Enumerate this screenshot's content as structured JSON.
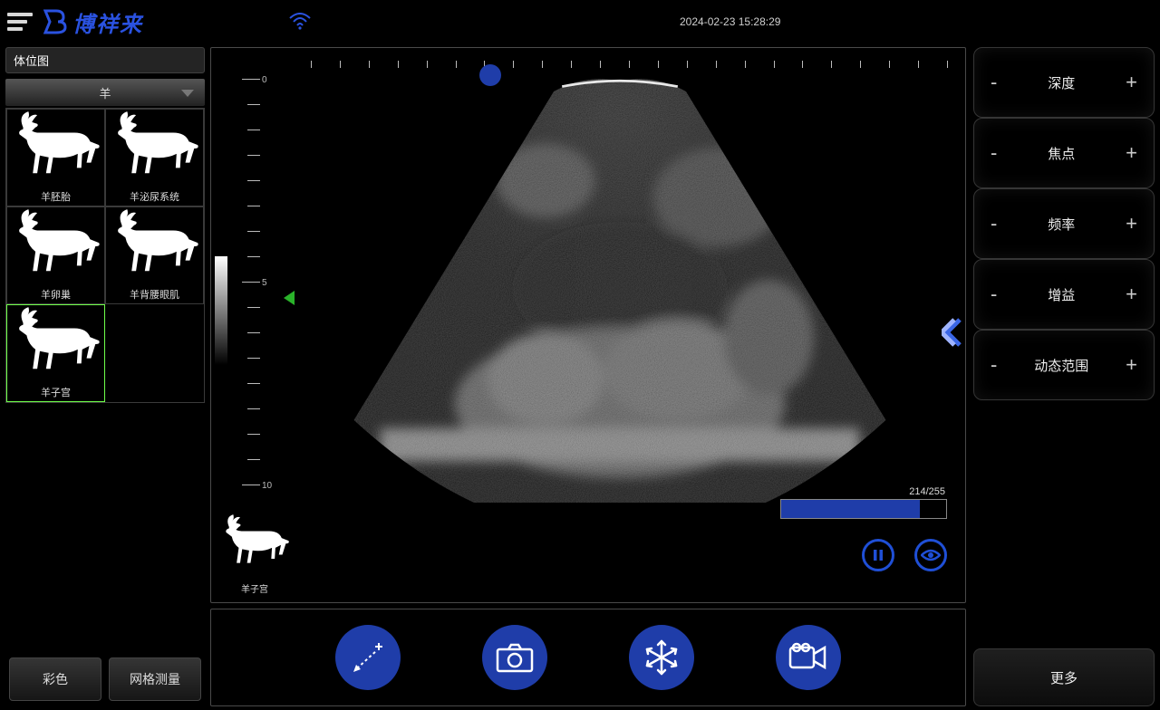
{
  "header": {
    "brand_text": "博祥来",
    "brand_color": "#2a52e0",
    "timestamp": "2024-02-23 15:28:29"
  },
  "sidebar": {
    "panel_title": "体位图",
    "animal_select_label": "羊",
    "items": [
      {
        "label": "羊胚胎",
        "selected": false
      },
      {
        "label": "羊泌尿系统",
        "selected": false
      },
      {
        "label": "羊卵巢",
        "selected": false
      },
      {
        "label": "羊背腰眼肌",
        "selected": false
      },
      {
        "label": "羊子宫",
        "selected": true
      }
    ],
    "buttons": {
      "color": "彩色",
      "grid": "网格测量"
    }
  },
  "viewer": {
    "depth_labels": [
      "0",
      "5",
      "10"
    ],
    "progress": {
      "current": 214,
      "total": 255,
      "text": "214/255",
      "fill_color": "#1f3da9"
    },
    "mini_label": "羊子宫",
    "colors": {
      "border": "#4a4a4a",
      "probe_marker": "#1f3da9",
      "arrow_green": "#2ab32a",
      "icon_blue": "#1f4fd6",
      "tool_blue": "#1f3da9"
    }
  },
  "controls": {
    "items": [
      {
        "label": "深度"
      },
      {
        "label": "焦点"
      },
      {
        "label": "频率"
      },
      {
        "label": "增益"
      },
      {
        "label": "动态范围"
      }
    ],
    "minus": "-",
    "plus": "+",
    "more": "更多"
  }
}
